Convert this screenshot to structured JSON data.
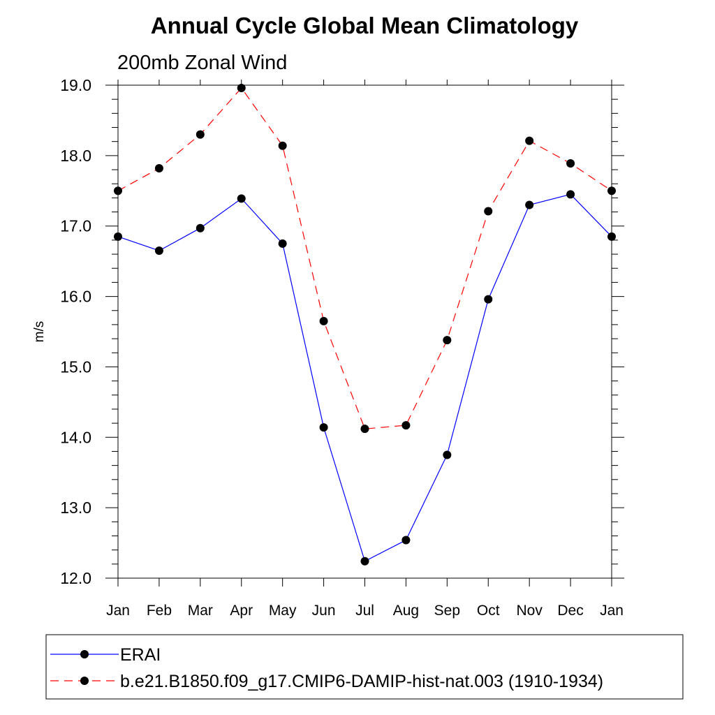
{
  "chart_data": {
    "type": "line",
    "title": "Annual Cycle Global Mean Climatology",
    "subtitle": "200mb Zonal Wind",
    "xlabel": "",
    "ylabel": "m/s",
    "ylim": [
      12.0,
      19.0
    ],
    "yticks": [
      "12.0",
      "13.0",
      "14.0",
      "15.0",
      "16.0",
      "17.0",
      "18.0",
      "19.0"
    ],
    "categories": [
      "Jan",
      "Feb",
      "Mar",
      "Apr",
      "May",
      "Jun",
      "Jul",
      "Aug",
      "Sep",
      "Oct",
      "Nov",
      "Dec",
      "Jan"
    ],
    "grid": false,
    "legend_position": "bottom",
    "series": [
      {
        "name": "ERAI",
        "color": "#0000ff",
        "line_style": "solid",
        "marker": "filled-circle",
        "values": [
          16.85,
          16.65,
          16.97,
          17.39,
          16.75,
          14.14,
          12.24,
          12.54,
          13.75,
          15.96,
          17.3,
          17.45,
          16.85
        ]
      },
      {
        "name": "b.e21.B1850.f09_g17.CMIP6-DAMIP-hist-nat.003 (1910-1934)",
        "color": "#ff0000",
        "line_style": "dashed",
        "marker": "filled-circle",
        "values": [
          17.5,
          17.82,
          18.3,
          18.96,
          18.14,
          15.65,
          14.12,
          14.17,
          15.38,
          17.21,
          18.21,
          17.89,
          17.5
        ]
      }
    ]
  }
}
